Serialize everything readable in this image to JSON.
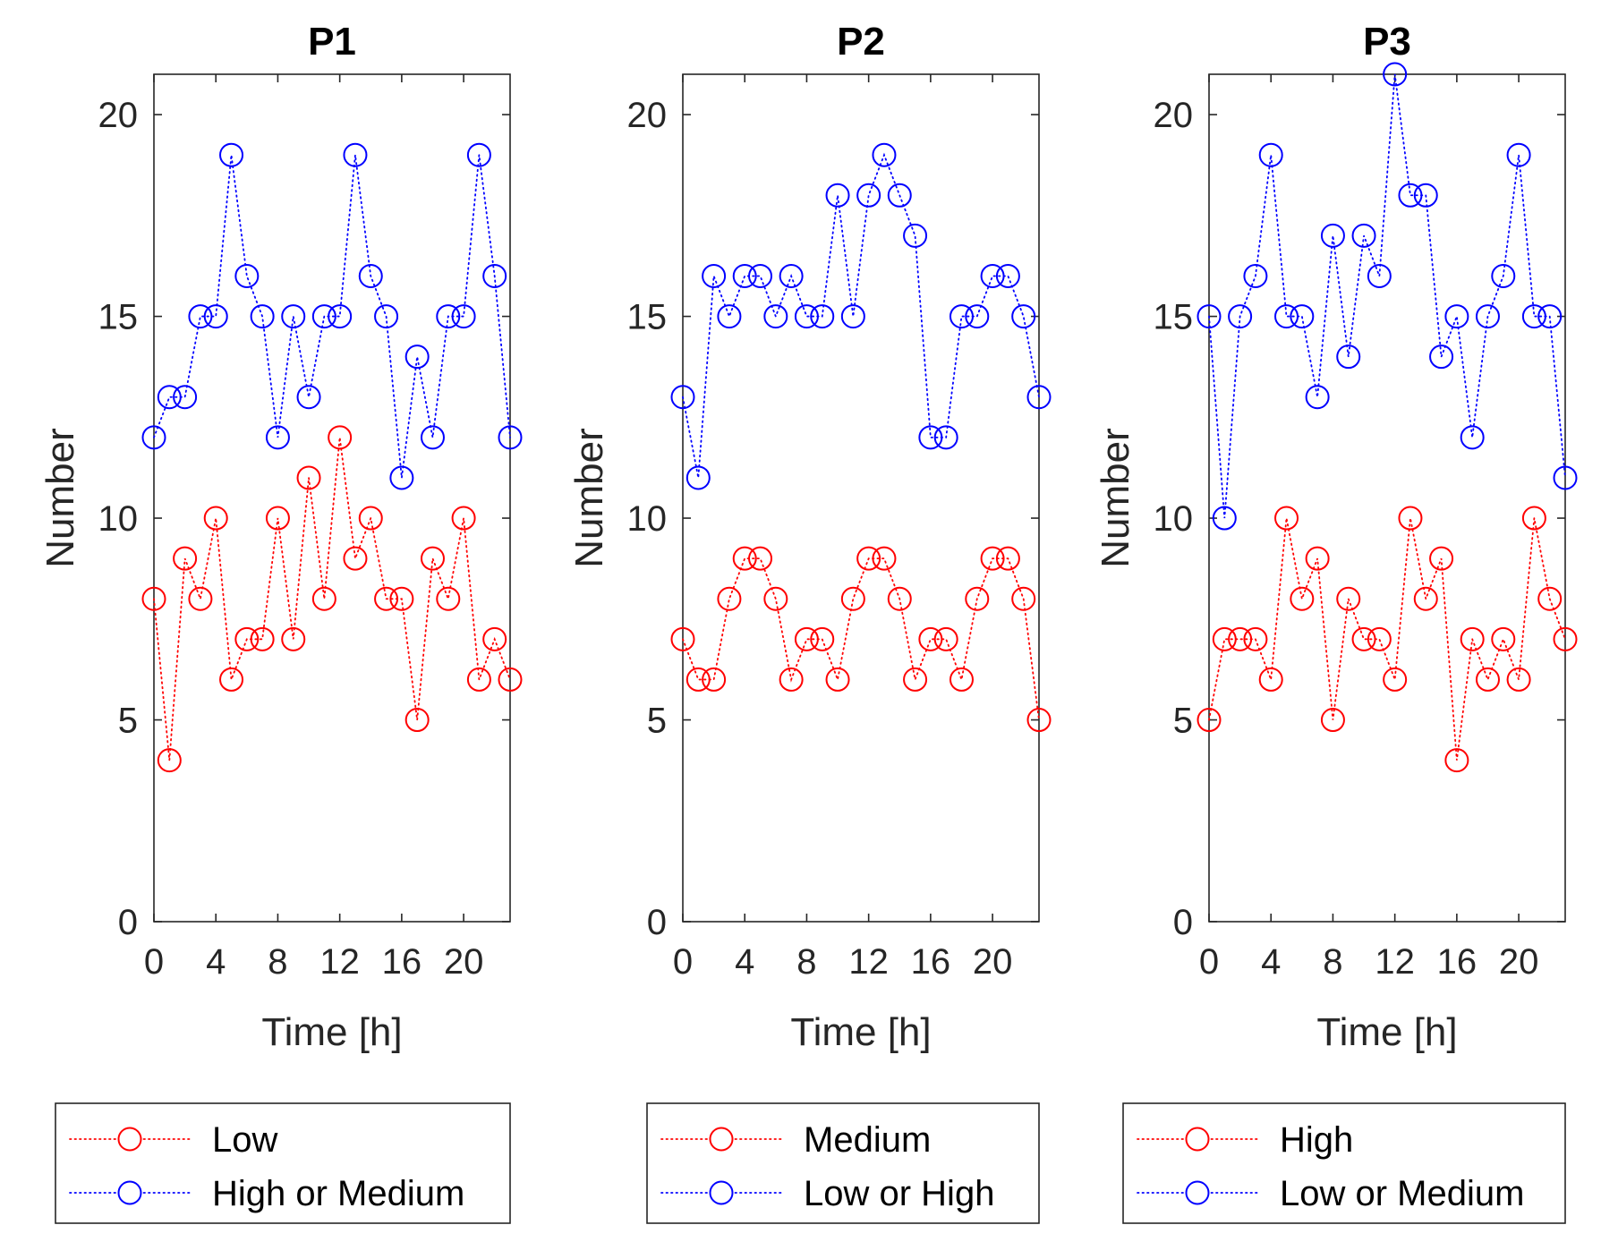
{
  "chart_data": [
    {
      "type": "line",
      "title": "P1",
      "xlabel": "Time [h]",
      "ylabel": "Number",
      "xlim": [
        0,
        23
      ],
      "ylim": [
        0,
        21
      ],
      "xticks": [
        0,
        4,
        8,
        12,
        16,
        20
      ],
      "yticks": [
        0,
        5,
        10,
        15,
        20
      ],
      "x": [
        0,
        1,
        2,
        3,
        4,
        5,
        6,
        7,
        8,
        9,
        10,
        11,
        12,
        13,
        14,
        15,
        16,
        17,
        18,
        19,
        20,
        21,
        22,
        23
      ],
      "series": [
        {
          "name": "Low",
          "color": "#ff0000",
          "values": [
            8,
            4,
            9,
            8,
            10,
            6,
            7,
            7,
            10,
            7,
            11,
            8,
            12,
            9,
            10,
            8,
            8,
            5,
            9,
            8,
            10,
            6,
            7,
            6
          ]
        },
        {
          "name": "High or Medium",
          "color": "#0000ff",
          "values": [
            12,
            13,
            13,
            15,
            15,
            19,
            16,
            15,
            12,
            15,
            13,
            15,
            15,
            19,
            16,
            15,
            11,
            14,
            12,
            15,
            15,
            19,
            16,
            12
          ]
        }
      ]
    },
    {
      "type": "line",
      "title": "P2",
      "xlabel": "Time [h]",
      "ylabel": "Number",
      "xlim": [
        0,
        23
      ],
      "ylim": [
        0,
        21
      ],
      "xticks": [
        0,
        4,
        8,
        12,
        16,
        20
      ],
      "yticks": [
        0,
        5,
        10,
        15,
        20
      ],
      "x": [
        0,
        1,
        2,
        3,
        4,
        5,
        6,
        7,
        8,
        9,
        10,
        11,
        12,
        13,
        14,
        15,
        16,
        17,
        18,
        19,
        20,
        21,
        22,
        23
      ],
      "series": [
        {
          "name": "Medium",
          "color": "#ff0000",
          "values": [
            7,
            6,
            6,
            8,
            9,
            9,
            8,
            6,
            7,
            7,
            6,
            8,
            9,
            9,
            8,
            6,
            7,
            7,
            6,
            8,
            9,
            9,
            8,
            5
          ]
        },
        {
          "name": "Low or High",
          "color": "#0000ff",
          "values": [
            13,
            11,
            16,
            15,
            16,
            16,
            15,
            16,
            15,
            15,
            18,
            15,
            18,
            19,
            18,
            17,
            12,
            12,
            15,
            15,
            16,
            16,
            15,
            13
          ]
        }
      ]
    },
    {
      "type": "line",
      "title": "P3",
      "xlabel": "Time [h]",
      "ylabel": "Number",
      "xlim": [
        0,
        23
      ],
      "ylim": [
        0,
        21
      ],
      "xticks": [
        0,
        4,
        8,
        12,
        16,
        20
      ],
      "yticks": [
        0,
        5,
        10,
        15,
        20
      ],
      "x": [
        0,
        1,
        2,
        3,
        4,
        5,
        6,
        7,
        8,
        9,
        10,
        11,
        12,
        13,
        14,
        15,
        16,
        17,
        18,
        19,
        20,
        21,
        22,
        23
      ],
      "series": [
        {
          "name": "High",
          "color": "#ff0000",
          "values": [
            5,
            7,
            7,
            7,
            6,
            10,
            8,
            9,
            5,
            8,
            7,
            7,
            6,
            10,
            8,
            9,
            4,
            7,
            6,
            7,
            6,
            10,
            8,
            7
          ]
        },
        {
          "name": "Low or Medium",
          "color": "#0000ff",
          "values": [
            15,
            10,
            15,
            16,
            19,
            15,
            15,
            13,
            17,
            14,
            17,
            16,
            21,
            18,
            18,
            14,
            15,
            12,
            15,
            16,
            19,
            15,
            15,
            11
          ]
        }
      ]
    }
  ]
}
